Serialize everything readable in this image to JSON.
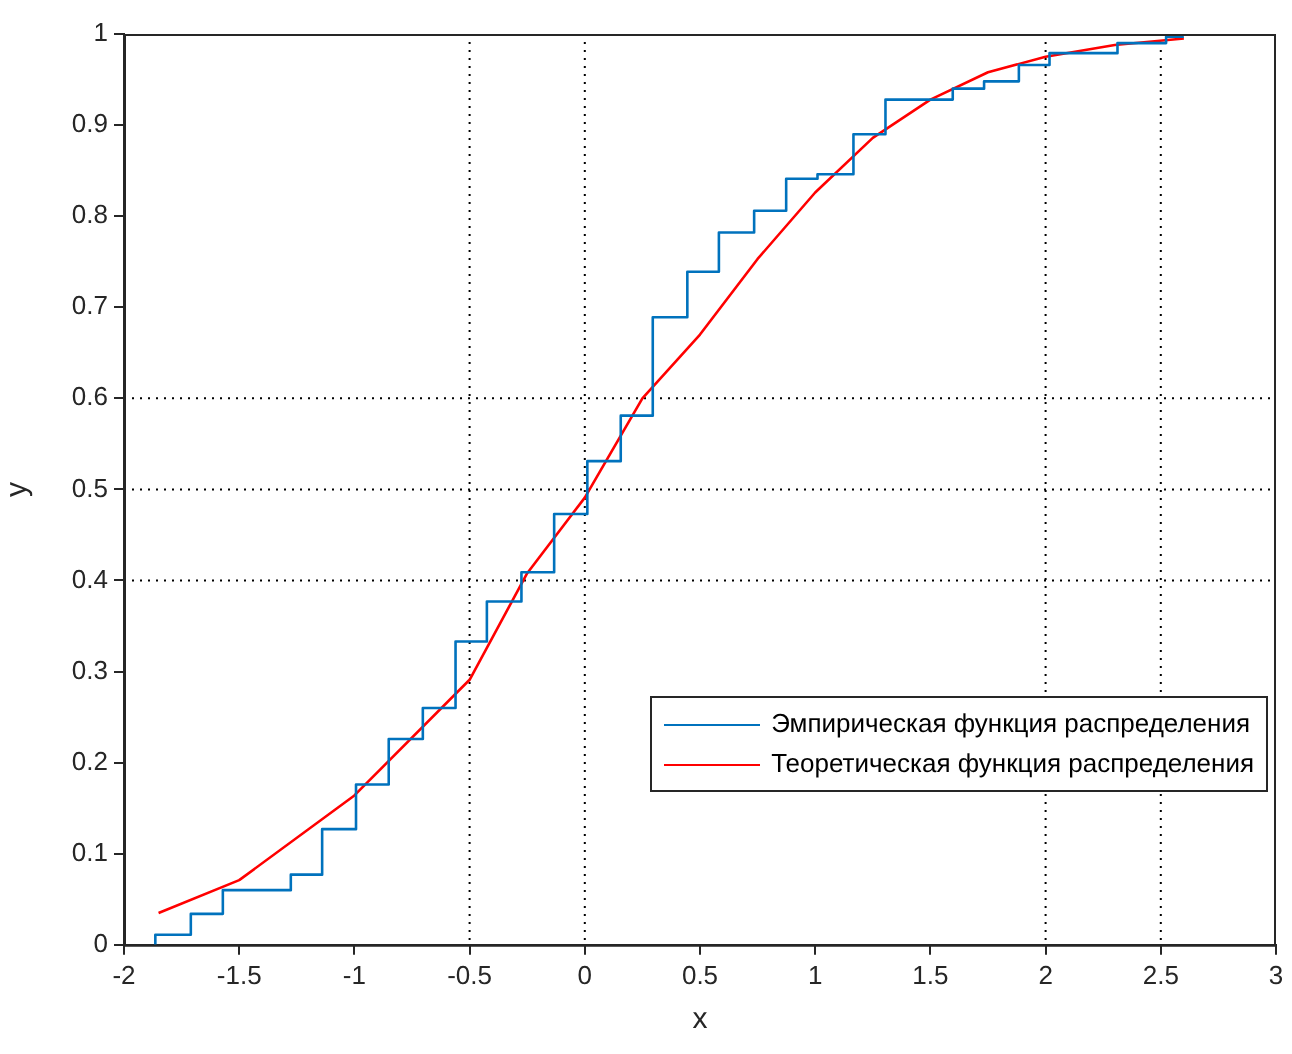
{
  "chart_data": {
    "type": "line",
    "xlabel": "x",
    "ylabel": "y",
    "xlim": [
      -2,
      3
    ],
    "xticks": [
      -2,
      -1.5,
      -1,
      -0.5,
      0,
      0.5,
      1,
      1.5,
      2,
      2.5,
      3
    ],
    "ylim": [
      0,
      1
    ],
    "yticks": [
      0,
      0.1,
      0.2,
      0.3,
      0.4,
      0.5,
      0.6,
      0.7,
      0.8,
      0.9,
      1
    ],
    "grid": false,
    "legend": "bottom right",
    "marker": "none",
    "line_style": "solid",
    "series": [
      {
        "name": "Эмпирическая функция распределения",
        "type": "step",
        "color": "#0072bd",
        "x": [
          -1.864,
          -1.864,
          -1.71,
          -1.571,
          -1.276,
          -1.14,
          -0.993,
          -0.851,
          -0.703,
          -0.561,
          -0.425,
          -0.275,
          -0.133,
          0.011,
          0.156,
          0.295,
          0.445,
          0.582,
          0.735,
          0.874,
          1.01,
          1.166,
          1.305,
          1.597,
          1.733,
          1.884,
          2.017,
          2.312,
          2.523,
          2.6
        ],
        "values": [
          0,
          0.011,
          0.034,
          0.06,
          0.077,
          0.127,
          0.176,
          0.226,
          0.26,
          0.333,
          0.377,
          0.409,
          0.473,
          0.531,
          0.581,
          0.689,
          0.739,
          0.782,
          0.806,
          0.841,
          0.846,
          0.89,
          0.928,
          0.94,
          0.948,
          0.966,
          0.979,
          0.99,
          0.997,
          0.997
        ]
      },
      {
        "name": "Теоретическая функция распределения",
        "type": "line",
        "color": "#ff0000",
        "x": [
          -1.85,
          -1.5,
          -1,
          -0.5,
          -0.25,
          0,
          0.25,
          0.5,
          0.75,
          1,
          1.25,
          1.5,
          1.75,
          2,
          2.3,
          2.6
        ],
        "values": [
          0.035,
          0.071,
          0.164,
          0.291,
          0.408,
          0.491,
          0.6,
          0.67,
          0.753,
          0.826,
          0.886,
          0.928,
          0.958,
          0.975,
          0.988,
          0.995
        ]
      }
    ],
    "ref_lines": [
      {
        "axis": "x",
        "value": -0.5,
        "color": "#000000",
        "line_style": "dotted"
      },
      {
        "axis": "x",
        "value": 0,
        "color": "#000000",
        "line_style": "dotted"
      },
      {
        "axis": "x",
        "value": 2,
        "color": "#000000",
        "line_style": "dotted"
      },
      {
        "axis": "x",
        "value": 2.5,
        "color": "#000000",
        "line_style": "dotted"
      },
      {
        "axis": "y",
        "value": 0.4,
        "color": "#000000",
        "line_style": "dotted"
      },
      {
        "axis": "y",
        "value": 0.5,
        "color": "#000000",
        "line_style": "dotted"
      },
      {
        "axis": "y",
        "value": 0.6,
        "color": "#000000",
        "line_style": "dotted"
      }
    ]
  }
}
